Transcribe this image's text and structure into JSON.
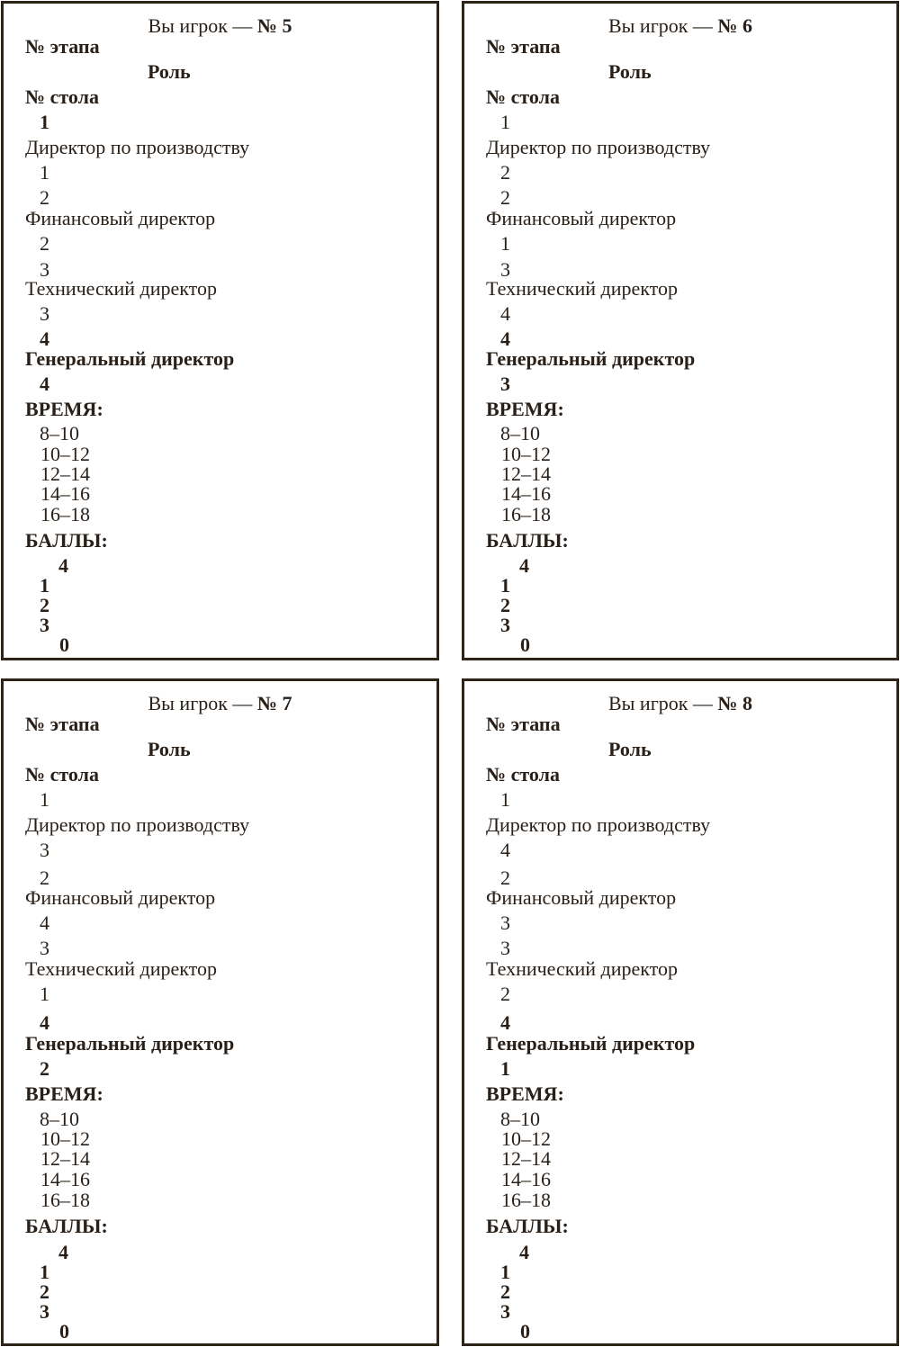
{
  "labels": {
    "title_prefix": "Вы игрок — ",
    "stage": "№ этапа",
    "role": "Роль",
    "table": "№ стола",
    "production": "Директор по производству",
    "finance": "Финансовый директор",
    "technical": "Технический директор",
    "general": "Генеральный директор",
    "time": "ВРЕМЯ:",
    "times": [
      "8–10",
      "10–12",
      "12–14",
      "14–16",
      "16–18"
    ],
    "points": "БАЛЛЫ:",
    "points_values": [
      "4",
      "1",
      "2",
      "3",
      "0"
    ]
  },
  "cards": [
    {
      "player": "№ 5",
      "stage": "1",
      "production": [
        "1",
        "2"
      ],
      "finance": [
        "2",
        "3"
      ],
      "technical": [
        "3",
        "4"
      ],
      "general": "4"
    },
    {
      "player": "№ 6",
      "stage": "1",
      "production": [
        "2",
        "2"
      ],
      "finance": [
        "1",
        "3"
      ],
      "technical": [
        "4",
        "4"
      ],
      "general": "3"
    },
    {
      "player": "№ 7",
      "stage": "1",
      "production": [
        "3",
        "2"
      ],
      "finance": [
        "4",
        "3"
      ],
      "technical": [
        "1",
        "4"
      ],
      "general": "2"
    },
    {
      "player": "№ 8",
      "stage": "1",
      "production": [
        "4",
        "2"
      ],
      "finance": [
        "3",
        "3"
      ],
      "technical": [
        "2",
        "4"
      ],
      "general": "1"
    }
  ]
}
